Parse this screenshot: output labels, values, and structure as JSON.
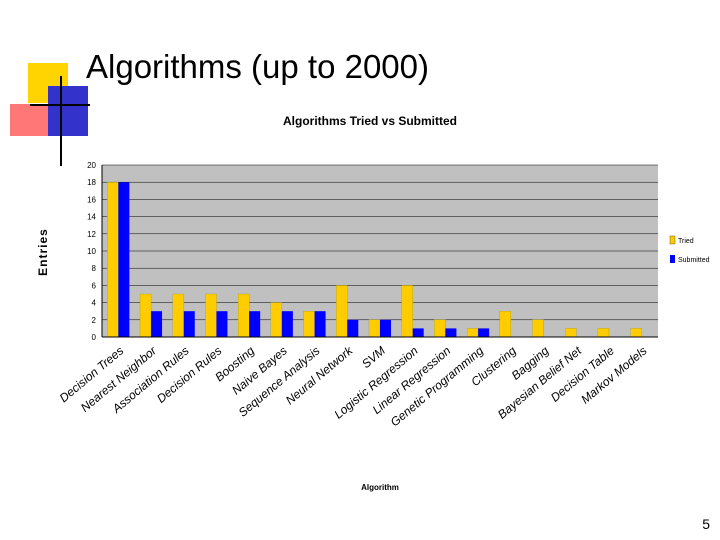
{
  "slide": {
    "title": "Algorithms (up to 2000)",
    "page_number": "5"
  },
  "colors": {
    "tried": "#ffcc00",
    "submitted": "#0000ff",
    "plot_bg": "#c0c0c0",
    "deco_yellow": "#ffd400",
    "deco_red": "#ff6666",
    "deco_blue": "#3333cc"
  },
  "chart_data": {
    "type": "bar",
    "title": "Algorithms Tried vs Submitted",
    "xlabel": "Algorithm",
    "ylabel": "Entries",
    "ylim": [
      0,
      20
    ],
    "yticks": [
      0,
      2,
      4,
      6,
      8,
      10,
      12,
      14,
      16,
      18,
      20
    ],
    "grid": true,
    "legend_position": "right",
    "categories": [
      "Decision Trees",
      "Nearest Neighbor",
      "Association Rules",
      "Decision Rules",
      "Boosting",
      "Naive Bayes",
      "Sequence Analysis",
      "Neural Network",
      "SVM",
      "Logistic Regression",
      "Linear Regression",
      "Genetic Programming",
      "Clustering",
      "Bagging",
      "Bayesian Belief Net",
      "Decision Table",
      "Markov Models"
    ],
    "series": [
      {
        "name": "Tried",
        "values": [
          18,
          5,
          5,
          5,
          5,
          4,
          3,
          6,
          2,
          6,
          2,
          1,
          3,
          2,
          1,
          1,
          1
        ]
      },
      {
        "name": "Submitted",
        "values": [
          18,
          3,
          3,
          3,
          3,
          3,
          3,
          2,
          2,
          1,
          1,
          1,
          0,
          0,
          0,
          0,
          0
        ]
      }
    ]
  }
}
